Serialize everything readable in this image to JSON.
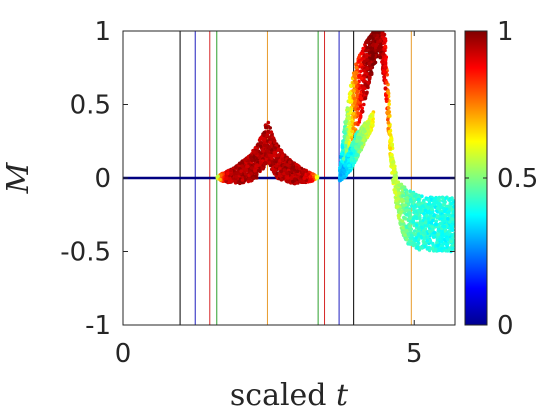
{
  "chart_data": {
    "type": "scatter",
    "title": "",
    "xlabel_prefix": "scaled ",
    "xlabel_var": "t",
    "ylabel": "M",
    "xlim": [
      0,
      5.7
    ],
    "ylim": [
      -1,
      1
    ],
    "xticks": [
      {
        "value": 0,
        "label": "0"
      },
      {
        "value": 5,
        "label": "5"
      }
    ],
    "yticks": [
      {
        "value": -1,
        "label": "-1"
      },
      {
        "value": -0.5,
        "label": "-0.5"
      },
      {
        "value": 0,
        "label": "0"
      },
      {
        "value": 0.5,
        "label": "0.5"
      },
      {
        "value": 1,
        "label": "1"
      }
    ],
    "grid": false,
    "colorbar": {
      "colormap": "jet",
      "range": [
        0,
        1
      ],
      "ticks": [
        {
          "value": 0,
          "label": "0"
        },
        {
          "value": 0.5,
          "label": "0.5"
        },
        {
          "value": 1,
          "label": "1"
        }
      ]
    },
    "vertical_lines": [
      {
        "x": 0.98,
        "color": "#000000"
      },
      {
        "x": 1.24,
        "color": "#1f1fbf"
      },
      {
        "x": 1.49,
        "color": "#d62728"
      },
      {
        "x": 1.61,
        "color": "#2ca02c"
      },
      {
        "x": 2.48,
        "color": "#e89b2b"
      },
      {
        "x": 3.35,
        "color": "#2ca02c"
      },
      {
        "x": 3.46,
        "color": "#d62728"
      },
      {
        "x": 3.71,
        "color": "#1f1fbf"
      },
      {
        "x": 3.96,
        "color": "#000000"
      },
      {
        "x": 4.95,
        "color": "#e89b2b"
      }
    ],
    "series": [
      {
        "description": "baseline, color value 0",
        "x": [
          0,
          0.5,
          1.0,
          1.5,
          1.55,
          1.6,
          3.3,
          3.35,
          3.4,
          3.5,
          4.0,
          4.5,
          5.0,
          5.5,
          5.7
        ],
        "y": [
          0,
          0,
          0,
          0,
          0,
          0,
          0,
          0,
          0,
          0,
          0,
          0,
          0,
          0,
          0
        ],
        "c": [
          0,
          0,
          0,
          0,
          0,
          0,
          0,
          0,
          0,
          0,
          0,
          0,
          0,
          0,
          0
        ]
      },
      {
        "description": "central cusp branch",
        "x": [
          1.62,
          1.7,
          1.8,
          1.9,
          2.0,
          2.1,
          2.2,
          2.3,
          2.4,
          2.48,
          2.56,
          2.65,
          2.75,
          2.85,
          2.95,
          3.05,
          3.15,
          3.25,
          3.34
        ],
        "y_upper": [
          0.01,
          0.03,
          0.05,
          0.07,
          0.1,
          0.13,
          0.17,
          0.23,
          0.3,
          0.4,
          0.3,
          0.23,
          0.17,
          0.13,
          0.1,
          0.07,
          0.05,
          0.03,
          0.01
        ],
        "y_lower": [
          0,
          -0.02,
          -0.03,
          -0.03,
          -0.04,
          -0.03,
          -0.02,
          0,
          0.05,
          0.12,
          0.05,
          0,
          -0.02,
          -0.03,
          -0.04,
          -0.03,
          -0.03,
          -0.02,
          0
        ],
        "c": [
          0.55,
          0.85,
          0.93,
          0.95,
          0.95,
          0.95,
          0.95,
          0.95,
          0.95,
          0.95,
          0.95,
          0.95,
          0.95,
          0.95,
          0.95,
          0.95,
          0.93,
          0.85,
          0.55
        ]
      },
      {
        "description": "right branch",
        "x": [
          3.72,
          3.8,
          3.9,
          4.0,
          4.1,
          4.2,
          4.3,
          4.4,
          4.5,
          4.6,
          4.7,
          4.8,
          4.9,
          5.0,
          5.1,
          5.2,
          5.3,
          5.4,
          5.5,
          5.6,
          5.7
        ],
        "y_upper": [
          0.05,
          0.35,
          0.62,
          0.78,
          0.88,
          0.96,
          1.0,
          1.0,
          1.0,
          0.3,
          0.0,
          -0.05,
          -0.08,
          -0.1,
          -0.12,
          -0.12,
          -0.13,
          -0.13,
          -0.13,
          -0.13,
          -0.13
        ],
        "y_lower": [
          -0.02,
          0.05,
          0.2,
          0.32,
          0.42,
          0.6,
          0.75,
          0.85,
          0.62,
          0.08,
          -0.22,
          -0.38,
          -0.45,
          -0.47,
          -0.49,
          -0.5,
          -0.5,
          -0.5,
          -0.5,
          -0.5,
          -0.5
        ],
        "c": [
          0.3,
          0.45,
          0.62,
          0.78,
          0.9,
          0.96,
          0.98,
          0.98,
          0.9,
          0.6,
          0.55,
          0.5,
          0.45,
          0.42,
          0.42,
          0.4,
          0.4,
          0.4,
          0.4,
          0.4,
          0.4
        ]
      },
      {
        "description": "lower cyan wedge",
        "x": [
          3.72,
          3.8,
          3.9,
          4.0,
          4.1,
          4.2,
          4.3
        ],
        "y_upper": [
          0.0,
          0.1,
          0.2,
          0.3,
          0.35,
          0.4,
          0.45
        ],
        "y_lower": [
          -0.02,
          0.0,
          0.05,
          0.12,
          0.2,
          0.28,
          0.35
        ],
        "c": [
          0.28,
          0.32,
          0.38,
          0.45,
          0.52,
          0.58,
          0.65
        ]
      }
    ]
  }
}
